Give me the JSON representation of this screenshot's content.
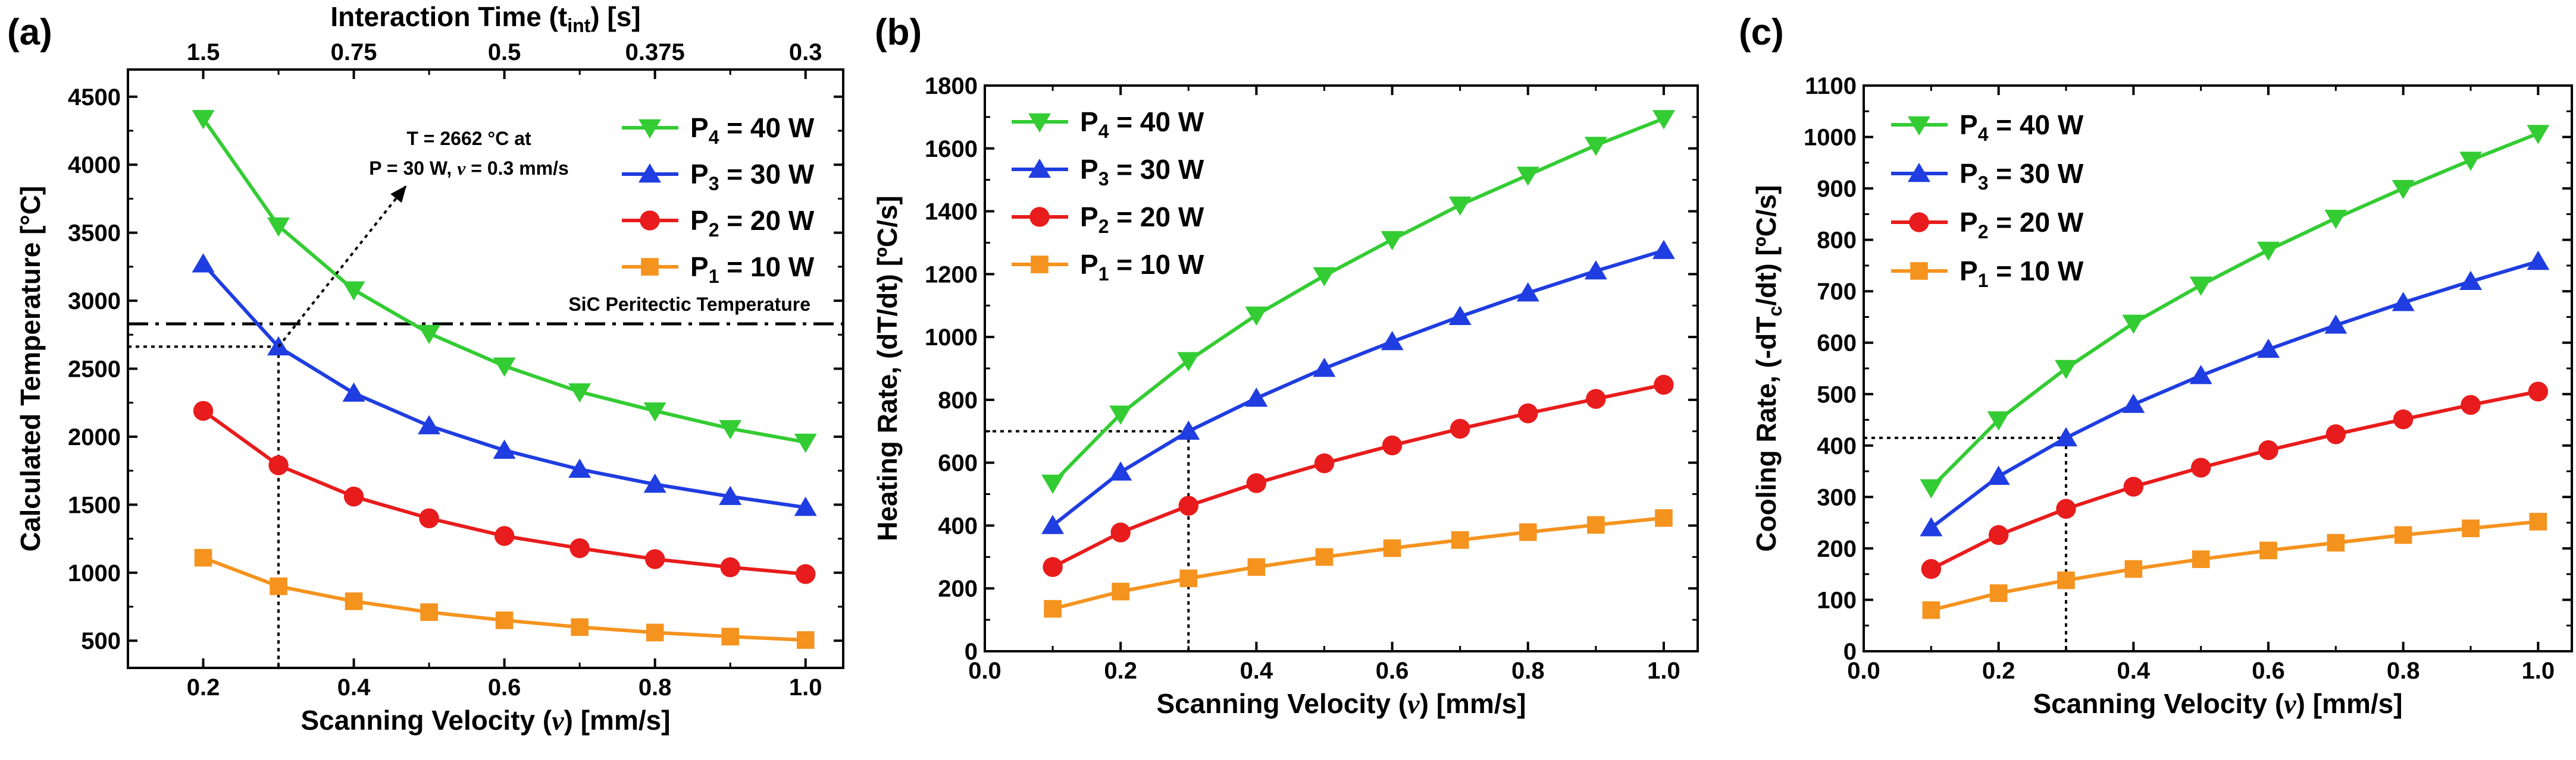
{
  "colors": {
    "P4": "#33cc33",
    "P3": "#1f3de0",
    "P2": "#e81c1c",
    "P1": "#f5931f",
    "frame": "#000000"
  },
  "chart_data": [
    {
      "panel": "(a)",
      "type": "line",
      "xlabel_main": "Scanning Velocity (",
      "xlabel_italic": "v",
      "xlabel_tail": ") [mm/s]",
      "ylabel": "Calculated Temperature [°C]",
      "xlim": [
        0.1,
        1.05
      ],
      "ylim": [
        300,
        4700
      ],
      "xticks": [
        0.2,
        0.4,
        0.6,
        0.8,
        1.0
      ],
      "xtick_labels": [
        "0.2",
        "0.4",
        "0.6",
        "0.8",
        "1.0"
      ],
      "yticks": [
        500,
        1000,
        1500,
        2000,
        2500,
        3000,
        3500,
        4000,
        4500
      ],
      "ytick_labels": [
        "500",
        "1000",
        "1500",
        "2000",
        "2500",
        "3000",
        "3500",
        "4000",
        "4500"
      ],
      "top_axis": {
        "title_main": "Interaction Time (t",
        "title_sub": "int",
        "title_tail": ") [s]",
        "tick_labels": [
          "1.5",
          "0.75",
          "0.5",
          "0.375",
          "0.3"
        ],
        "tick_positions": [
          0.2,
          0.4,
          0.6,
          0.8,
          1.0
        ],
        "minor_positions": [
          0.3,
          0.5,
          0.7,
          0.9
        ]
      },
      "x": [
        0.2,
        0.3,
        0.4,
        0.5,
        0.6,
        0.7,
        0.8,
        0.9,
        1.0
      ],
      "series": [
        {
          "key": "P4",
          "name_main": "P",
          "name_sub": "4",
          "name_tail": " = 40 W",
          "marker": "triangle-down",
          "values": [
            4340,
            3550,
            3080,
            2760,
            2520,
            2330,
            2190,
            2060,
            1960
          ]
        },
        {
          "key": "P3",
          "name_main": "P",
          "name_sub": "3",
          "name_tail": " = 30 W",
          "marker": "triangle-up",
          "values": [
            3270,
            2660,
            2320,
            2080,
            1900,
            1760,
            1650,
            1560,
            1480
          ]
        },
        {
          "key": "P2",
          "name_main": "P",
          "name_sub": "2",
          "name_tail": " = 20 W",
          "marker": "circle",
          "values": [
            2190,
            1790,
            1560,
            1400,
            1270,
            1180,
            1100,
            1040,
            990
          ]
        },
        {
          "key": "P1",
          "name_main": "P",
          "name_sub": "1",
          "name_tail": " = 10 W",
          "marker": "square",
          "values": [
            1110,
            900,
            790,
            710,
            650,
            600,
            560,
            530,
            505
          ]
        }
      ],
      "hline": {
        "y": 2830,
        "label": "SiC Peritectic Temperature"
      },
      "guide": {
        "x": 0.3,
        "y": 2662
      },
      "annotation": {
        "line1": "T = 2662 °C at",
        "line2_main": "P = 30 W, ",
        "line2_italic": "v",
        "line2_tail": " = 0.3 mm/s"
      }
    },
    {
      "panel": "(b)",
      "type": "line",
      "xlabel_main": "Scanning Velocity (",
      "xlabel_italic": "v",
      "xlabel_tail": ") [mm/s]",
      "ylabel": "Heating Rate, (dT/dt) [ºC/s]",
      "xlim": [
        0.0,
        1.05
      ],
      "ylim": [
        0,
        1800
      ],
      "xticks": [
        0.0,
        0.2,
        0.4,
        0.6,
        0.8,
        1.0
      ],
      "xtick_labels": [
        "0.0",
        "0.2",
        "0.4",
        "0.6",
        "0.8",
        "1.0"
      ],
      "yticks": [
        0,
        200,
        400,
        600,
        800,
        1000,
        1200,
        1400,
        1600,
        1800
      ],
      "ytick_labels": [
        "0",
        "200",
        "400",
        "600",
        "800",
        "1000",
        "1200",
        "1400",
        "1600",
        "1800"
      ],
      "x": [
        0.1,
        0.2,
        0.3,
        0.4,
        0.5,
        0.6,
        0.7,
        0.8,
        0.9,
        1.0
      ],
      "series": [
        {
          "key": "P4",
          "name_main": "P",
          "name_sub": "4",
          "name_tail": " = 40 W",
          "marker": "triangle-down",
          "values": [
            535,
            755,
            925,
            1070,
            1195,
            1310,
            1420,
            1515,
            1610,
            1695
          ]
        },
        {
          "key": "P3",
          "name_main": "P",
          "name_sub": "3",
          "name_tail": " = 30 W",
          "marker": "triangle-up",
          "values": [
            400,
            570,
            700,
            805,
            900,
            985,
            1065,
            1140,
            1210,
            1275
          ]
        },
        {
          "key": "P2",
          "name_main": "P",
          "name_sub": "2",
          "name_tail": " = 20 W",
          "marker": "circle",
          "values": [
            268,
            378,
            463,
            535,
            598,
            655,
            708,
            757,
            803,
            848
          ]
        },
        {
          "key": "P1",
          "name_main": "P",
          "name_sub": "1",
          "name_tail": " = 10 W",
          "marker": "square",
          "values": [
            135,
            190,
            232,
            268,
            300,
            328,
            354,
            379,
            402,
            424
          ]
        }
      ],
      "guide": {
        "x": 0.3,
        "y": 700
      }
    },
    {
      "panel": "(c)",
      "type": "line",
      "xlabel_main": "Scanning Velocity (",
      "xlabel_italic": "v",
      "xlabel_tail": ") [mm/s]",
      "ylabel_main": "Cooling Rate, (-dT",
      "ylabel_sub": "c",
      "ylabel_tail": "/dt) [ºC/s]",
      "xlim": [
        0.0,
        1.05
      ],
      "ylim": [
        0,
        1100
      ],
      "xticks": [
        0.0,
        0.2,
        0.4,
        0.6,
        0.8,
        1.0
      ],
      "xtick_labels": [
        "0.0",
        "0.2",
        "0.4",
        "0.6",
        "0.8",
        "1.0"
      ],
      "yticks": [
        0,
        100,
        200,
        300,
        400,
        500,
        600,
        700,
        800,
        900,
        1000,
        1100
      ],
      "ytick_labels": [
        "0",
        "100",
        "200",
        "300",
        "400",
        "500",
        "600",
        "700",
        "800",
        "900",
        "1000",
        "1100"
      ],
      "x": [
        0.1,
        0.2,
        0.3,
        0.4,
        0.5,
        0.6,
        0.7,
        0.8,
        0.9,
        1.0
      ],
      "series": [
        {
          "key": "P4",
          "name_main": "P",
          "name_sub": "4",
          "name_tail": " = 40 W",
          "marker": "triangle-down",
          "values": [
            318,
            450,
            550,
            638,
            712,
            780,
            842,
            900,
            955,
            1007
          ]
        },
        {
          "key": "P3",
          "name_main": "P",
          "name_sub": "3",
          "name_tail": " = 30 W",
          "marker": "triangle-up",
          "values": [
            240,
            340,
            415,
            480,
            536,
            587,
            634,
            678,
            719,
            758
          ]
        },
        {
          "key": "P2",
          "name_main": "P",
          "name_sub": "2",
          "name_tail": " = 20 W",
          "marker": "circle",
          "values": [
            160,
            226,
            277,
            320,
            357,
            391,
            422,
            451,
            479,
            505
          ]
        },
        {
          "key": "P1",
          "name_main": "P",
          "name_sub": "1",
          "name_tail": " = 10 W",
          "marker": "square",
          "values": [
            80,
            113,
            138,
            160,
            179,
            196,
            211,
            226,
            239,
            252
          ]
        }
      ],
      "guide": {
        "x": 0.3,
        "y": 415
      }
    }
  ]
}
